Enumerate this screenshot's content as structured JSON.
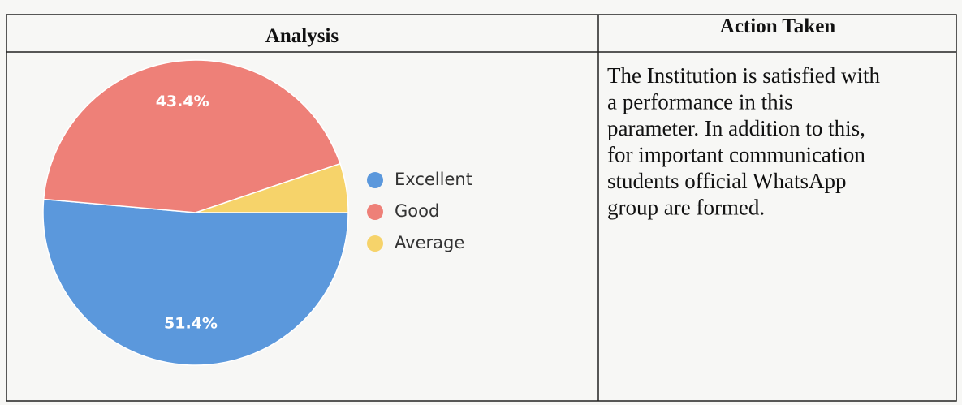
{
  "table": {
    "headers": [
      "Analysis",
      "Action Taken"
    ]
  },
  "chart_data": {
    "type": "pie",
    "categories": [
      "Excellent",
      "Good",
      "Average"
    ],
    "values": [
      51.4,
      43.4,
      5.2
    ],
    "value_labels": [
      "51.4%",
      "43.4%",
      null
    ],
    "colors": [
      "#5b98dc",
      "#ee8078",
      "#f6d36a"
    ],
    "legend": "right"
  },
  "action_text": [
    "The Institution is satisfied with",
    "a performance in this",
    "parameter. In addition to this,",
    "for important communication",
    "students official WhatsApp",
    "group are formed."
  ]
}
